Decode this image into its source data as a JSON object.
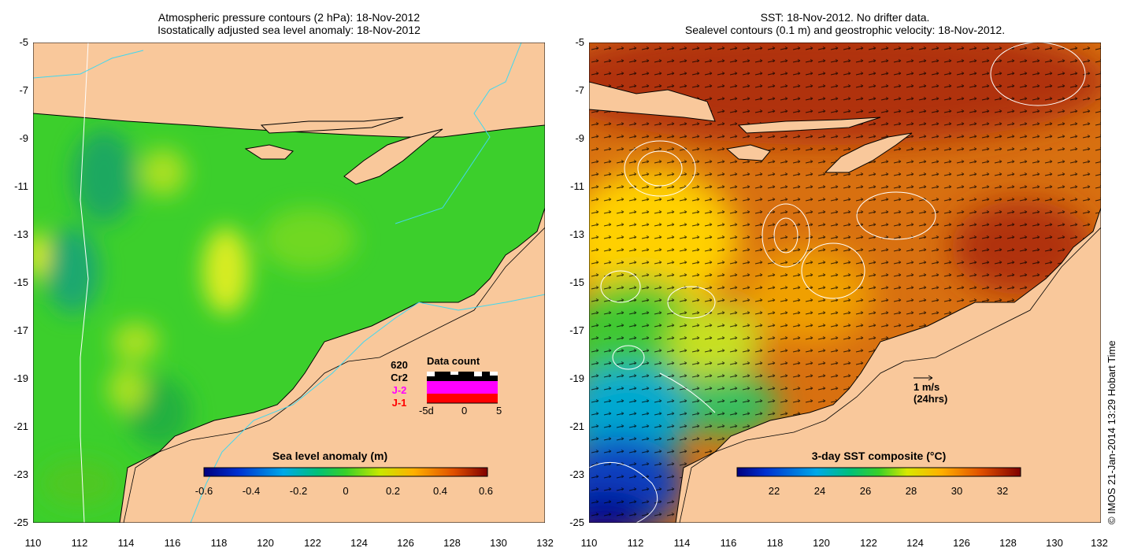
{
  "left_panel": {
    "title_line1": "Atmospheric pressure contours (2 hPa): 18-Nov-2012",
    "title_line2": "Isostatically adjusted sea level anomaly: 18-Nov-2012",
    "colorbar": {
      "label": "Sea level anomaly (m)",
      "ticks": [
        "-0.6",
        "-0.4",
        "-0.2",
        "0",
        "0.2",
        "0.4",
        "0.6"
      ]
    },
    "data_count": {
      "title": "Data count",
      "labels": [
        "620",
        "Cr2",
        "J-2",
        "J-1"
      ],
      "label_colors": [
        "#000000",
        "#000000",
        "#ff00ff",
        "#ff0000"
      ],
      "xticks": [
        "-5d",
        "0",
        "5"
      ]
    }
  },
  "right_panel": {
    "title_line1": "SST: 18-Nov-2012. No drifter data.",
    "title_line2": "Sealevel contours (0.1 m) and geostrophic velocity: 18-Nov-2012.",
    "colorbar": {
      "label": "3-day SST composite (°C)",
      "ticks": [
        "22",
        "24",
        "26",
        "28",
        "30",
        "32"
      ]
    },
    "velocity_scale": {
      "label": "1 m/s",
      "sublabel": "(24hrs)"
    }
  },
  "axes": {
    "yticks": [
      "-5",
      "-7",
      "-9",
      "-11",
      "-13",
      "-15",
      "-17",
      "-19",
      "-21",
      "-23",
      "-25"
    ],
    "xticks": [
      "110",
      "112",
      "114",
      "116",
      "118",
      "120",
      "122",
      "124",
      "126",
      "128",
      "130",
      "132"
    ]
  },
  "colors": {
    "land": "#f9c89b",
    "sla_ocean": "#3ccf2c",
    "sst_warm": "#c8500a",
    "sst_cool": "#1a60c8"
  },
  "credit": "© IMOS 21-Jan-2014 13:29 Hobart Time"
}
